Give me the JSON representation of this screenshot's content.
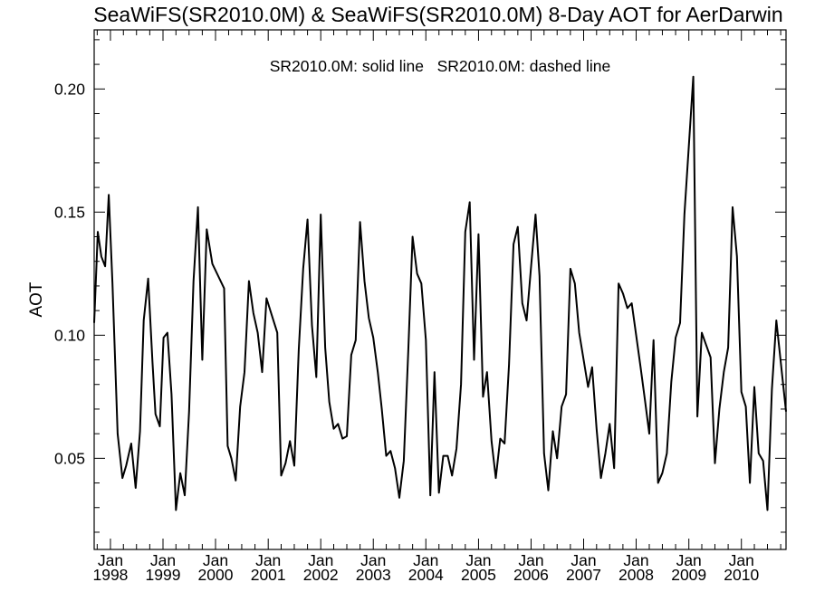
{
  "chart_data": {
    "type": "line",
    "title": "SeaWiFS(SR2010.0M) & SeaWiFS(SR2010.0M) 8-Day AOT for AerDarwin",
    "annotation": "SR2010.0M: solid line   SR2010.0M: dashed line",
    "ylabel": "AOT",
    "xlabel": "",
    "xlim": [
      "1997-09-10",
      "2010-11-07"
    ],
    "ylim": [
      0.013,
      0.224
    ],
    "y_ticks": [
      0.05,
      0.1,
      0.15,
      0.2
    ],
    "y_tick_labels": [
      "0.05",
      "0.10",
      "0.15",
      "0.20"
    ],
    "x_ticks": [
      {
        "date": "1998-01-01",
        "month": "Jan",
        "year": "1998"
      },
      {
        "date": "1999-01-01",
        "month": "Jan",
        "year": "1999"
      },
      {
        "date": "2000-01-01",
        "month": "Jan",
        "year": "2000"
      },
      {
        "date": "2001-01-01",
        "month": "Jan",
        "year": "2001"
      },
      {
        "date": "2002-01-01",
        "month": "Jan",
        "year": "2002"
      },
      {
        "date": "2003-01-01",
        "month": "Jan",
        "year": "2003"
      },
      {
        "date": "2004-01-01",
        "month": "Jan",
        "year": "2004"
      },
      {
        "date": "2005-01-01",
        "month": "Jan",
        "year": "2005"
      },
      {
        "date": "2006-01-01",
        "month": "Jan",
        "year": "2006"
      },
      {
        "date": "2007-01-01",
        "month": "Jan",
        "year": "2007"
      },
      {
        "date": "2008-01-01",
        "month": "Jan",
        "year": "2008"
      },
      {
        "date": "2009-01-01",
        "month": "Jan",
        "year": "2009"
      },
      {
        "date": "2010-01-01",
        "month": "Jan",
        "year": "2010"
      }
    ],
    "grid": false,
    "series": [
      {
        "style": "solid",
        "color": "#000000",
        "points": [
          [
            "1997-09-10",
            0.105
          ],
          [
            "1997-10-05",
            0.142
          ],
          [
            "1997-10-30",
            0.132
          ],
          [
            "1997-11-25",
            0.128
          ],
          [
            "1997-12-20",
            0.157
          ],
          [
            "1998-01-15",
            0.121
          ],
          [
            "1998-02-20",
            0.06
          ],
          [
            "1998-03-25",
            0.042
          ],
          [
            "1998-04-20",
            0.047
          ],
          [
            "1998-05-25",
            0.056
          ],
          [
            "1998-06-25",
            0.038
          ],
          [
            "1998-07-25",
            0.061
          ],
          [
            "1998-08-20",
            0.106
          ],
          [
            "1998-09-20",
            0.123
          ],
          [
            "1998-10-20",
            0.089
          ],
          [
            "1998-11-10",
            0.068
          ],
          [
            "1998-12-10",
            0.063
          ],
          [
            "1999-01-05",
            0.099
          ],
          [
            "1999-02-01",
            0.101
          ],
          [
            "1999-03-01",
            0.076
          ],
          [
            "1999-04-01",
            0.029
          ],
          [
            "1999-05-01",
            0.044
          ],
          [
            "1999-06-01",
            0.035
          ],
          [
            "1999-07-01",
            0.069
          ],
          [
            "1999-08-01",
            0.122
          ],
          [
            "1999-09-01",
            0.152
          ],
          [
            "1999-10-01",
            0.09
          ],
          [
            "1999-11-01",
            0.143
          ],
          [
            "1999-12-10",
            0.129
          ],
          [
            "2000-01-20",
            0.124
          ],
          [
            "2000-03-01",
            0.119
          ],
          [
            "2000-03-25",
            0.055
          ],
          [
            "2000-04-20",
            0.05
          ],
          [
            "2000-05-20",
            0.041
          ],
          [
            "2000-06-20",
            0.071
          ],
          [
            "2000-07-20",
            0.085
          ],
          [
            "2000-08-20",
            0.122
          ],
          [
            "2000-09-20",
            0.109
          ],
          [
            "2000-10-20",
            0.101
          ],
          [
            "2000-11-20",
            0.085
          ],
          [
            "2000-12-20",
            0.115
          ],
          [
            "2001-02-01",
            0.107
          ],
          [
            "2001-03-05",
            0.101
          ],
          [
            "2001-04-01",
            0.043
          ],
          [
            "2001-05-01",
            0.048
          ],
          [
            "2001-06-01",
            0.057
          ],
          [
            "2001-07-01",
            0.047
          ],
          [
            "2001-08-01",
            0.094
          ],
          [
            "2001-09-01",
            0.127
          ],
          [
            "2001-10-01",
            0.147
          ],
          [
            "2001-11-01",
            0.104
          ],
          [
            "2001-12-01",
            0.083
          ],
          [
            "2002-01-01",
            0.149
          ],
          [
            "2002-02-01",
            0.095
          ],
          [
            "2002-03-01",
            0.073
          ],
          [
            "2002-04-01",
            0.062
          ],
          [
            "2002-05-01",
            0.064
          ],
          [
            "2002-06-01",
            0.058
          ],
          [
            "2002-07-01",
            0.059
          ],
          [
            "2002-08-01",
            0.092
          ],
          [
            "2002-09-01",
            0.098
          ],
          [
            "2002-10-01",
            0.146
          ],
          [
            "2002-11-01",
            0.122
          ],
          [
            "2002-12-01",
            0.107
          ],
          [
            "2003-01-01",
            0.099
          ],
          [
            "2003-02-01",
            0.085
          ],
          [
            "2003-03-01",
            0.07
          ],
          [
            "2003-04-01",
            0.051
          ],
          [
            "2003-05-01",
            0.053
          ],
          [
            "2003-06-01",
            0.046
          ],
          [
            "2003-07-01",
            0.034
          ],
          [
            "2003-08-01",
            0.049
          ],
          [
            "2003-09-01",
            0.094
          ],
          [
            "2003-10-01",
            0.14
          ],
          [
            "2003-11-01",
            0.125
          ],
          [
            "2003-12-01",
            0.121
          ],
          [
            "2004-01-01",
            0.098
          ],
          [
            "2004-02-01",
            0.035
          ],
          [
            "2004-03-01",
            0.085
          ],
          [
            "2004-04-01",
            0.036
          ],
          [
            "2004-05-01",
            0.051
          ],
          [
            "2004-06-01",
            0.051
          ],
          [
            "2004-07-01",
            0.043
          ],
          [
            "2004-08-01",
            0.054
          ],
          [
            "2004-09-01",
            0.08
          ],
          [
            "2004-10-01",
            0.142
          ],
          [
            "2004-11-01",
            0.154
          ],
          [
            "2004-12-01",
            0.09
          ],
          [
            "2005-01-01",
            0.141
          ],
          [
            "2005-02-01",
            0.075
          ],
          [
            "2005-03-01",
            0.085
          ],
          [
            "2005-04-01",
            0.057
          ],
          [
            "2005-05-01",
            0.042
          ],
          [
            "2005-06-01",
            0.058
          ],
          [
            "2005-07-01",
            0.056
          ],
          [
            "2005-08-01",
            0.088
          ],
          [
            "2005-09-01",
            0.137
          ],
          [
            "2005-10-01",
            0.144
          ],
          [
            "2005-11-01",
            0.113
          ],
          [
            "2005-12-01",
            0.106
          ],
          [
            "2006-01-01",
            0.128
          ],
          [
            "2006-02-01",
            0.149
          ],
          [
            "2006-03-01",
            0.124
          ],
          [
            "2006-04-01",
            0.052
          ],
          [
            "2006-05-01",
            0.037
          ],
          [
            "2006-06-01",
            0.061
          ],
          [
            "2006-07-01",
            0.05
          ],
          [
            "2006-08-01",
            0.071
          ],
          [
            "2006-09-01",
            0.076
          ],
          [
            "2006-10-01",
            0.127
          ],
          [
            "2006-11-01",
            0.121
          ],
          [
            "2006-12-01",
            0.101
          ],
          [
            "2007-01-01",
            0.09
          ],
          [
            "2007-02-01",
            0.079
          ],
          [
            "2007-03-01",
            0.087
          ],
          [
            "2007-04-01",
            0.062
          ],
          [
            "2007-05-01",
            0.042
          ],
          [
            "2007-06-01",
            0.052
          ],
          [
            "2007-07-01",
            0.064
          ],
          [
            "2007-08-01",
            0.046
          ],
          [
            "2007-09-01",
            0.121
          ],
          [
            "2007-10-01",
            0.117
          ],
          [
            "2007-11-01",
            0.111
          ],
          [
            "2007-12-01",
            0.113
          ],
          [
            "2008-01-01",
            0.1
          ],
          [
            "2008-02-01",
            0.087
          ],
          [
            "2008-03-01",
            0.074
          ],
          [
            "2008-04-01",
            0.06
          ],
          [
            "2008-05-01",
            0.098
          ],
          [
            "2008-06-01",
            0.04
          ],
          [
            "2008-07-01",
            0.044
          ],
          [
            "2008-08-01",
            0.052
          ],
          [
            "2008-09-01",
            0.081
          ],
          [
            "2008-10-01",
            0.099
          ],
          [
            "2008-11-01",
            0.105
          ],
          [
            "2008-12-01",
            0.149
          ],
          [
            "2009-01-01",
            0.177
          ],
          [
            "2009-02-01",
            0.205
          ],
          [
            "2009-03-01",
            0.067
          ],
          [
            "2009-04-01",
            0.101
          ],
          [
            "2009-05-01",
            0.096
          ],
          [
            "2009-06-01",
            0.091
          ],
          [
            "2009-07-01",
            0.048
          ],
          [
            "2009-08-01",
            0.07
          ],
          [
            "2009-09-01",
            0.085
          ],
          [
            "2009-10-01",
            0.095
          ],
          [
            "2009-11-01",
            0.152
          ],
          [
            "2009-12-01",
            0.132
          ],
          [
            "2010-01-01",
            0.077
          ],
          [
            "2010-02-01",
            0.071
          ],
          [
            "2010-03-01",
            0.04
          ],
          [
            "2010-04-01",
            0.079
          ],
          [
            "2010-05-01",
            0.052
          ],
          [
            "2010-06-01",
            0.049
          ],
          [
            "2010-07-01",
            0.029
          ],
          [
            "2010-08-01",
            0.078
          ],
          [
            "2010-09-01",
            0.106
          ],
          [
            "2010-11-07",
            0.069
          ]
        ]
      }
    ]
  }
}
